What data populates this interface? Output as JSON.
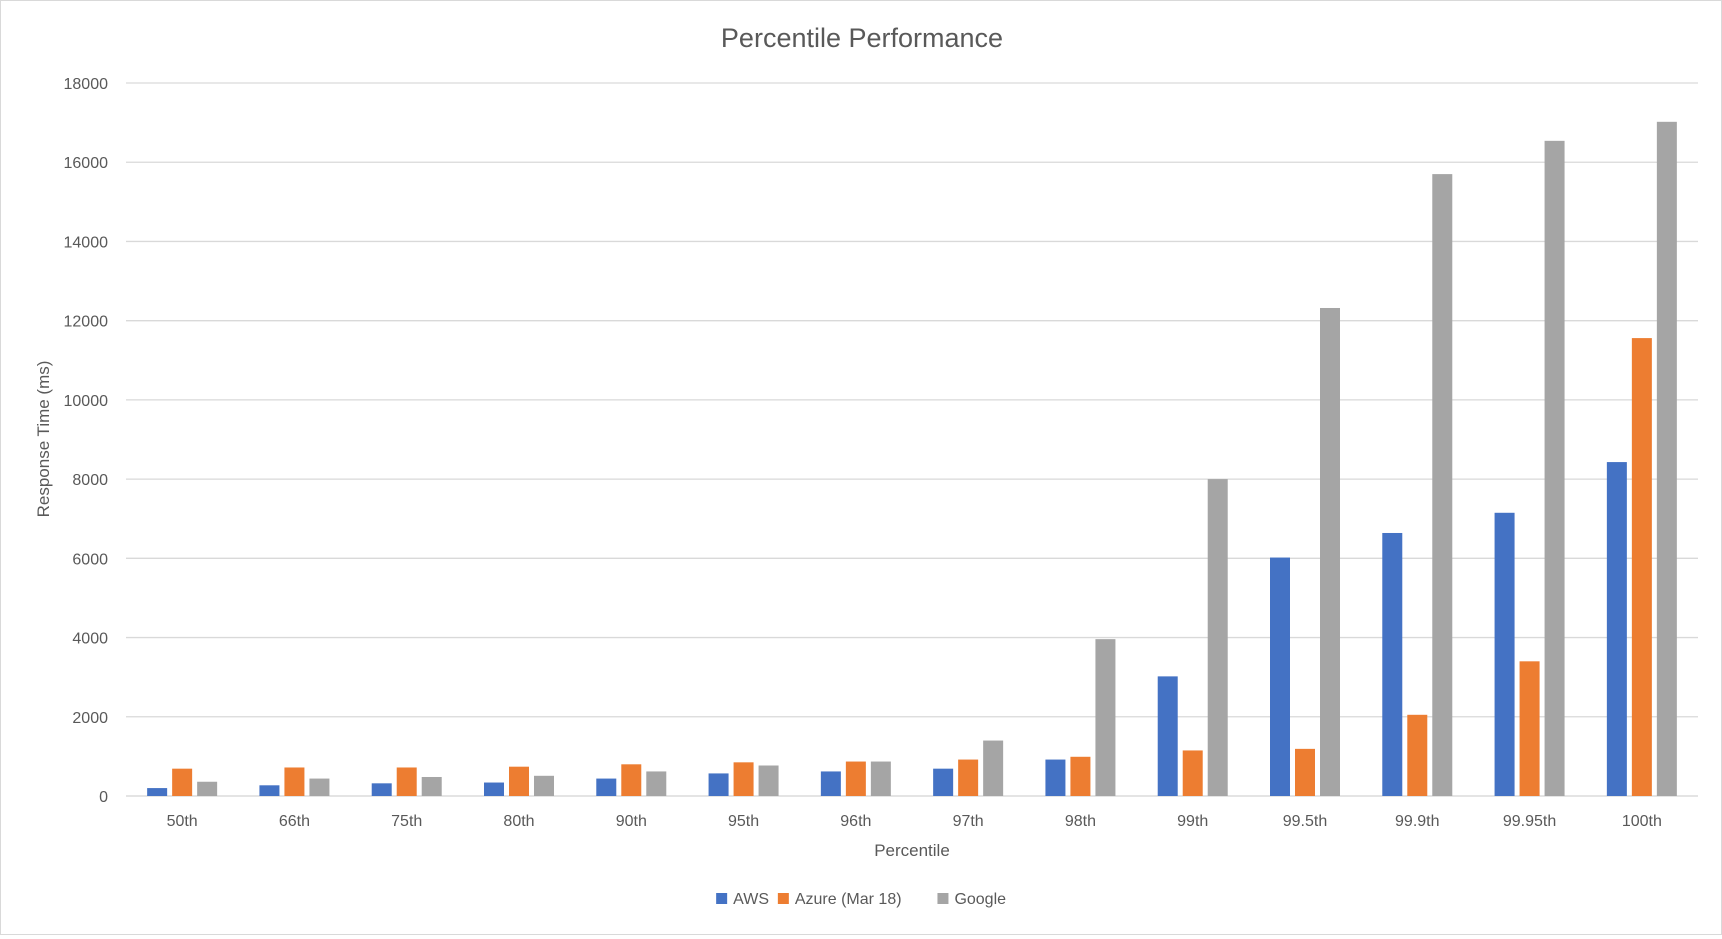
{
  "chart_data": {
    "type": "bar",
    "title": "Percentile Performance",
    "xlabel": "Percentile",
    "ylabel": "Response Time (ms)",
    "ylim": [
      0,
      18000
    ],
    "yticks": [
      0,
      2000,
      4000,
      6000,
      8000,
      10000,
      12000,
      14000,
      16000,
      18000
    ],
    "grid": true,
    "legend_position": "bottom",
    "categories": [
      "50th",
      "66th",
      "75th",
      "80th",
      "90th",
      "95th",
      "96th",
      "97th",
      "98th",
      "99th",
      "99.5th",
      "99.9th",
      "99.95th",
      "100th"
    ],
    "series": [
      {
        "name": "AWS",
        "color": "#4472C4",
        "values": [
          200,
          270,
          320,
          340,
          440,
          570,
          620,
          690,
          920,
          3020,
          6020,
          6640,
          7150,
          8430
        ]
      },
      {
        "name": "Azure (Mar 18)",
        "color": "#ED7D31",
        "values": [
          690,
          720,
          720,
          740,
          800,
          850,
          870,
          920,
          990,
          1150,
          1190,
          2050,
          3400,
          11560
        ]
      },
      {
        "name": "Google",
        "color": "#A5A5A5",
        "values": [
          360,
          440,
          480,
          510,
          620,
          770,
          870,
          1400,
          3960,
          8000,
          12320,
          15700,
          16540,
          17020
        ]
      }
    ]
  }
}
